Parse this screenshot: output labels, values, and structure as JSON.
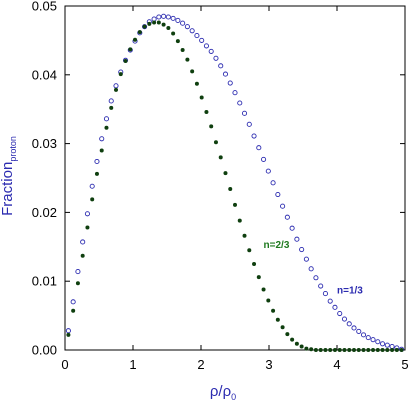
{
  "chart_data": {
    "type": "scatter",
    "xlabel": "ρ/ρ",
    "xlabel_subscript": "0",
    "ylabel": "Fraction",
    "ylabel_subscript": "proton",
    "xlim": [
      0,
      5
    ],
    "ylim": [
      0,
      0.05
    ],
    "xticks": [
      0,
      1,
      2,
      3,
      4,
      5
    ],
    "xtick_labels": [
      "0",
      "1",
      "2",
      "3",
      "4",
      "5"
    ],
    "yticks": [
      0.0,
      0.01,
      0.02,
      0.03,
      0.04,
      0.05
    ],
    "ytick_labels": [
      "0.00",
      "0.01",
      "0.02",
      "0.03",
      "0.04",
      "0.05"
    ],
    "grid": false,
    "colors": {
      "axis": "#000000",
      "ylabel": "#2b2bb0",
      "xlabel": "#2b2bb0",
      "n13": "#2b2bb0",
      "n23": "#0f3f0f",
      "n23_label": "#1f7a1f"
    },
    "series": [
      {
        "name": "n=1/3",
        "marker": "open-circle",
        "x": [
          0.05,
          0.12,
          0.19,
          0.26,
          0.33,
          0.4,
          0.47,
          0.54,
          0.61,
          0.68,
          0.75,
          0.82,
          0.89,
          0.96,
          1.03,
          1.1,
          1.17,
          1.24,
          1.31,
          1.38,
          1.45,
          1.52,
          1.59,
          1.66,
          1.73,
          1.8,
          1.87,
          1.94,
          2.01,
          2.08,
          2.15,
          2.22,
          2.29,
          2.36,
          2.43,
          2.5,
          2.57,
          2.64,
          2.71,
          2.78,
          2.85,
          2.92,
          2.99,
          3.06,
          3.13,
          3.2,
          3.27,
          3.34,
          3.41,
          3.48,
          3.55,
          3.62,
          3.69,
          3.76,
          3.83,
          3.9,
          3.97,
          4.04,
          4.11,
          4.18,
          4.25,
          4.32,
          4.39,
          4.46,
          4.53,
          4.6,
          4.67,
          4.74,
          4.81,
          4.88,
          4.95
        ],
        "y": [
          0.0028,
          0.007,
          0.0114,
          0.0157,
          0.0198,
          0.0238,
          0.0274,
          0.0307,
          0.0336,
          0.0362,
          0.0384,
          0.0404,
          0.0421,
          0.0436,
          0.0449,
          0.0461,
          0.047,
          0.0477,
          0.0481,
          0.0484,
          0.0485,
          0.0484,
          0.0482,
          0.0479,
          0.0475,
          0.047,
          0.0464,
          0.0457,
          0.045,
          0.0442,
          0.0434,
          0.0424,
          0.0413,
          0.0401,
          0.0388,
          0.0374,
          0.0359,
          0.0344,
          0.0328,
          0.0311,
          0.0294,
          0.0277,
          0.026,
          0.0243,
          0.0226,
          0.0209,
          0.0193,
          0.0177,
          0.0161,
          0.0146,
          0.0132,
          0.0118,
          0.0105,
          0.0093,
          0.0082,
          0.0071,
          0.0062,
          0.0053,
          0.0045,
          0.0038,
          0.0032,
          0.0027,
          0.0022,
          0.0018,
          0.0015,
          0.0012,
          0.0009,
          0.0007,
          0.0005,
          0.0003,
          0.0001
        ]
      },
      {
        "name": "n=2/3",
        "marker": "filled-circle",
        "x": [
          0.05,
          0.12,
          0.19,
          0.26,
          0.33,
          0.4,
          0.47,
          0.54,
          0.61,
          0.68,
          0.75,
          0.82,
          0.89,
          0.96,
          1.03,
          1.1,
          1.17,
          1.24,
          1.31,
          1.38,
          1.45,
          1.52,
          1.59,
          1.66,
          1.73,
          1.8,
          1.87,
          1.94,
          2.01,
          2.08,
          2.15,
          2.22,
          2.29,
          2.36,
          2.43,
          2.5,
          2.57,
          2.64,
          2.71,
          2.78,
          2.85,
          2.92,
          2.99,
          3.06,
          3.13,
          3.2,
          3.27,
          3.34,
          3.41,
          3.48,
          3.55,
          3.62,
          3.69,
          3.76,
          3.83,
          3.9,
          3.97,
          4.04,
          4.11,
          4.18,
          4.25,
          4.32,
          4.39,
          4.46,
          4.53,
          4.6,
          4.67,
          4.74,
          4.81,
          4.88,
          4.95
        ],
        "y": [
          0.0022,
          0.0057,
          0.0097,
          0.0137,
          0.0178,
          0.0219,
          0.0256,
          0.029,
          0.0323,
          0.0352,
          0.0378,
          0.0401,
          0.042,
          0.0437,
          0.0451,
          0.0462,
          0.047,
          0.0474,
          0.0476,
          0.0476,
          0.0473,
          0.0468,
          0.046,
          0.0449,
          0.0436,
          0.0422,
          0.0405,
          0.0387,
          0.0367,
          0.0346,
          0.0325,
          0.0302,
          0.028,
          0.0257,
          0.0234,
          0.0211,
          0.0188,
          0.0166,
          0.0145,
          0.0125,
          0.0106,
          0.0088,
          0.0072,
          0.0057,
          0.0044,
          0.0033,
          0.0023,
          0.0015,
          0.0009,
          0.0005,
          0.0002,
          0.0001,
          0.0,
          0.0,
          0.0,
          0.0,
          0.0,
          0.0,
          0.0,
          0.0,
          0.0,
          0.0,
          0.0,
          0.0,
          0.0,
          0.0,
          0.0,
          0.0,
          0.0,
          0.0,
          0.0
        ]
      }
    ],
    "annotations": [
      {
        "text": "n=1/3",
        "x": 4.0,
        "y": 0.0082,
        "color": "#2b2bb0"
      },
      {
        "text": "n=2/3",
        "x": 2.92,
        "y": 0.0148,
        "color": "#1f7a1f"
      }
    ]
  }
}
